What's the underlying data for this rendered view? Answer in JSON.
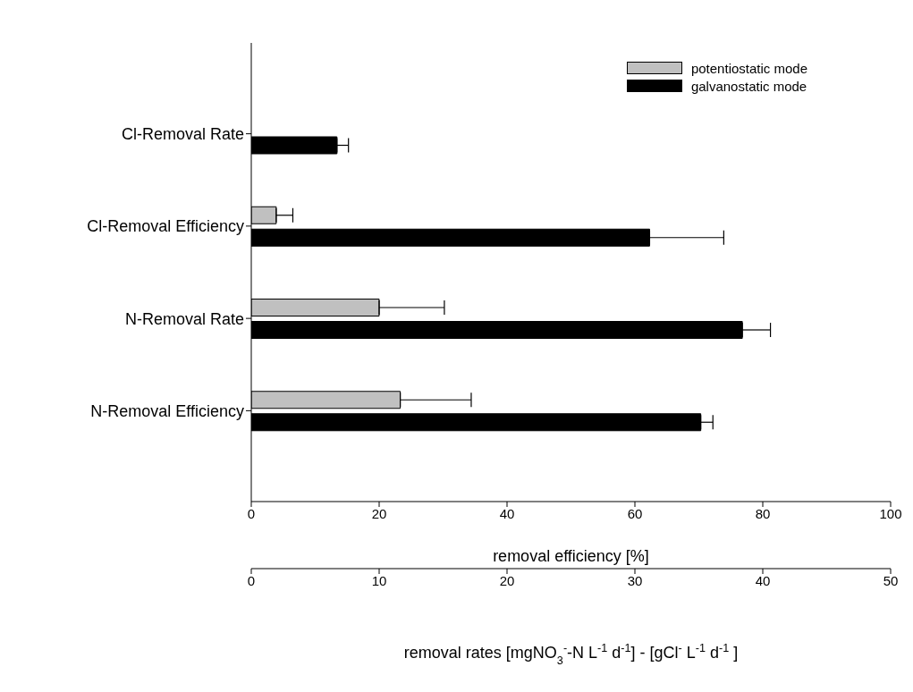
{
  "chart_data": {
    "type": "bar",
    "orientation": "horizontal",
    "categories": [
      "Cl-Removal Rate",
      "Cl-Removal Efficiency",
      "N-Removal Rate",
      "N-Removal Efficiency"
    ],
    "series": [
      {
        "name": "potentiostatic mode",
        "color": "#c0c0c0",
        "values": [
          null,
          3.9,
          null,
          23.3
        ],
        "errors": [
          null,
          [
            3.9,
            6.5
          ],
          null,
          [
            23.3,
            34.4
          ]
        ]
      },
      {
        "name": "galvanostatic mode",
        "color": "#000000",
        "values": [
          null,
          62.3,
          null,
          70.3
        ],
        "errors": [
          null,
          [
            62.3,
            73.9
          ],
          null,
          [
            70.3,
            72.2
          ]
        ]
      },
      {
        "color": "#c0c0c0",
        "axis": "x2",
        "values": [
          null,
          null,
          10.0,
          null
        ],
        "errors": [
          null,
          null,
          [
            10.0,
            15.1
          ],
          null
        ]
      },
      {
        "color": "#000000",
        "axis": "x2",
        "values": [
          6.7,
          null,
          38.4,
          null
        ],
        "errors": [
          [
            6.7,
            7.6
          ],
          null,
          [
            38.4,
            40.6
          ],
          null
        ]
      }
    ],
    "xlim": [
      0,
      100
    ],
    "xticks": [
      0,
      20,
      40,
      60,
      80,
      100
    ],
    "xlabel": "removal efficiency [%]",
    "x2lim": [
      0,
      50
    ],
    "x2ticks": [
      0,
      10,
      20,
      30,
      40,
      50
    ],
    "x2label": "removal rates [mgNO$_{3}$$^{-}$-N L$^{-1}$ d$^{-1}$] - [gCl$^{-}$ L$^{-1}$ d$^{-1}$ ]",
    "legend": "top right"
  }
}
